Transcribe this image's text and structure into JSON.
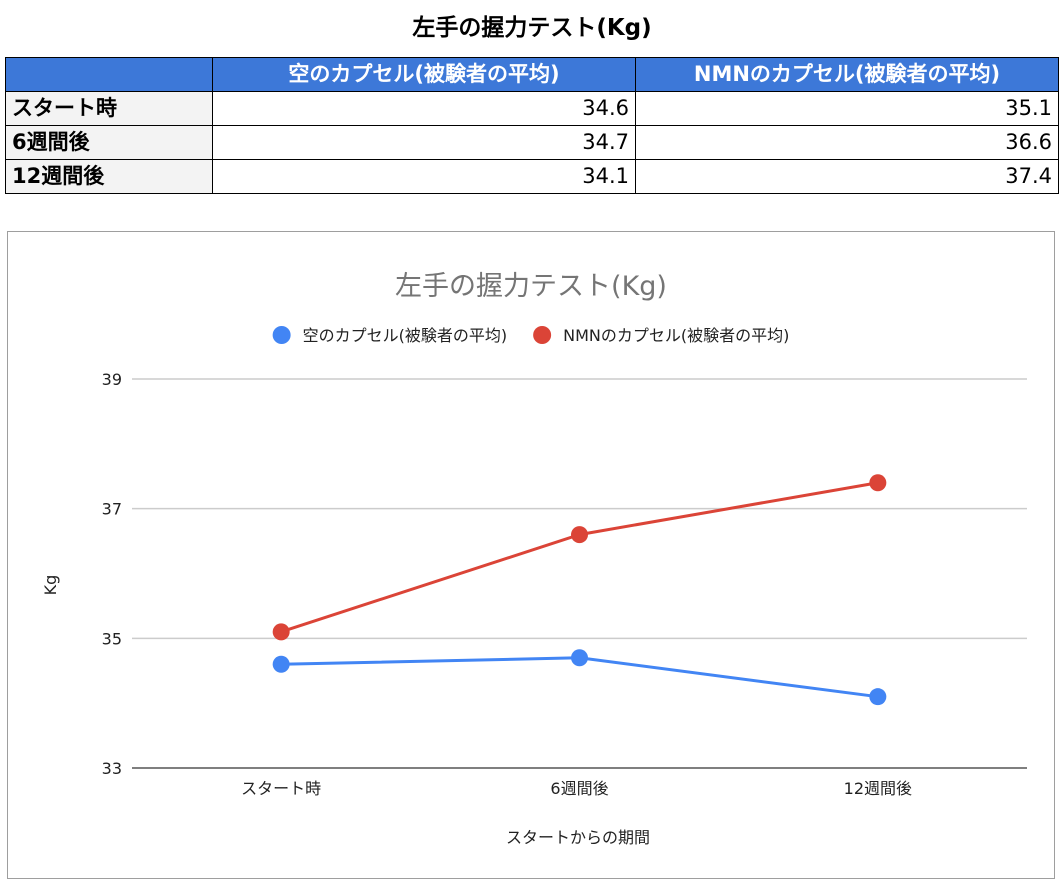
{
  "page_title": "左手の握力テスト(Kg)",
  "table": {
    "columns": [
      "",
      "空のカプセル(被験者の平均)",
      "NMNのカプセル(被験者の平均)"
    ],
    "rows": [
      {
        "label": "スタート時",
        "values": [
          "34.6",
          "35.1"
        ]
      },
      {
        "label": "6週間後",
        "values": [
          "34.7",
          "36.6"
        ]
      },
      {
        "label": "12週間後",
        "values": [
          "34.1",
          "37.4"
        ]
      }
    ]
  },
  "chart_data": {
    "type": "line",
    "title": "左手の握力テスト(Kg)",
    "xlabel": "スタートからの期間",
    "ylabel": "Kg",
    "categories": [
      "スタート時",
      "6週間後",
      "12週間後"
    ],
    "ylim": [
      33,
      39
    ],
    "yticks": [
      33,
      35,
      37,
      39
    ],
    "grid": true,
    "legend": "top",
    "series": [
      {
        "name": "空のカプセル(被験者の平均)",
        "color": "#4285f4",
        "values": [
          34.6,
          34.7,
          34.1
        ]
      },
      {
        "name": "NMNのカプセル(被験者の平均)",
        "color": "#db4437",
        "values": [
          35.1,
          36.6,
          37.4
        ]
      }
    ]
  }
}
